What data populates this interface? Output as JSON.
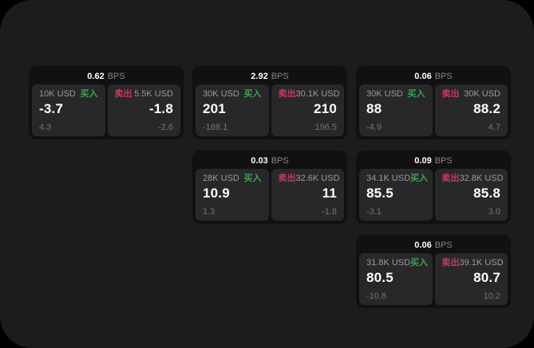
{
  "labels": {
    "buy": "买入",
    "sell": "卖出",
    "bps": "BPS"
  },
  "colors": {
    "background": "#000000",
    "surface": "#1c1c1e",
    "card": "#111113",
    "panel": "#28282a",
    "buy": "#3da254",
    "sell": "#bf3d5a"
  },
  "cards": [
    {
      "bps": "0.62",
      "buy": {
        "amount": "10K USD",
        "price": "-3.7",
        "delta": "4.3"
      },
      "sell": {
        "amount": "5.5K USD",
        "price": "-1.8",
        "delta": "-2.6"
      }
    },
    {
      "bps": "2.92",
      "buy": {
        "amount": "30K USD",
        "price": "201",
        "delta": "-188.1"
      },
      "sell": {
        "amount": "30.1K USD",
        "price": "210",
        "delta": "196.5"
      }
    },
    {
      "bps": "0.06",
      "buy": {
        "amount": "30K USD",
        "price": "88",
        "delta": "-4.9"
      },
      "sell": {
        "amount": "30K USD",
        "price": "88.2",
        "delta": "4.7"
      }
    },
    {
      "bps": "0.03",
      "buy": {
        "amount": "28K USD",
        "price": "10.9",
        "delta": "1.3"
      },
      "sell": {
        "amount": "32.6K USD",
        "price": "11",
        "delta": "-1.8"
      }
    },
    {
      "bps": "0.09",
      "buy": {
        "amount": "34.1K USD",
        "price": "85.5",
        "delta": "-3.1"
      },
      "sell": {
        "amount": "32.8K USD",
        "price": "85.8",
        "delta": "3.0"
      }
    },
    {
      "bps": "0.06",
      "buy": {
        "amount": "31.8K USD",
        "price": "80.5",
        "delta": "-10.8"
      },
      "sell": {
        "amount": "39.1K USD",
        "price": "80.7",
        "delta": "10.2"
      }
    }
  ]
}
